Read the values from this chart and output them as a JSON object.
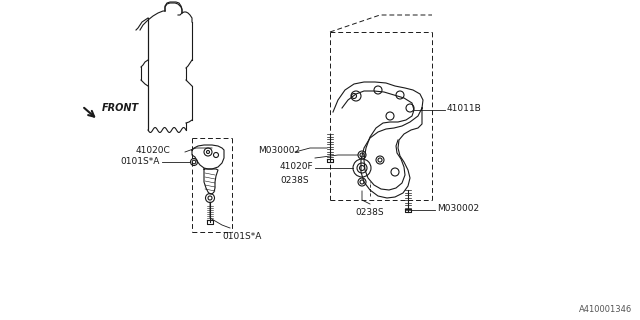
{
  "bg_color": "#ffffff",
  "line_color": "#1a1a1a",
  "label_color": "#1a1a1a",
  "fig_width": 6.4,
  "fig_height": 3.2,
  "dpi": 100,
  "watermark": "A410001346",
  "labels": {
    "front": "FRONT",
    "41020C": "41020C",
    "0101S_A_top": "0101S*A",
    "0101S_A_bot": "0101S*A",
    "41011B": "41011B",
    "M030002_left": "M030002",
    "41020F": "41020F",
    "0238S_top": "0238S",
    "0238S_bot": "0238S",
    "M030002_right": "M030002"
  },
  "engine_outline": {
    "left_x": [
      155,
      156,
      158,
      160,
      163,
      167,
      170,
      172,
      173,
      174,
      174,
      173,
      172,
      170,
      168,
      166,
      164,
      162,
      160,
      158,
      157,
      156,
      155,
      155
    ],
    "left_y": [
      35,
      28,
      22,
      17,
      13,
      10,
      9,
      9,
      10,
      12,
      16,
      20,
      24,
      27,
      30,
      33,
      35,
      36,
      37,
      37,
      36,
      35,
      34,
      35
    ],
    "top_nub_x": [
      167,
      170,
      174,
      178,
      180,
      181,
      180,
      178,
      175,
      172,
      169,
      167
    ],
    "top_nub_y": [
      10,
      7,
      4,
      3,
      4,
      7,
      10,
      12,
      13,
      13,
      12,
      10
    ]
  }
}
